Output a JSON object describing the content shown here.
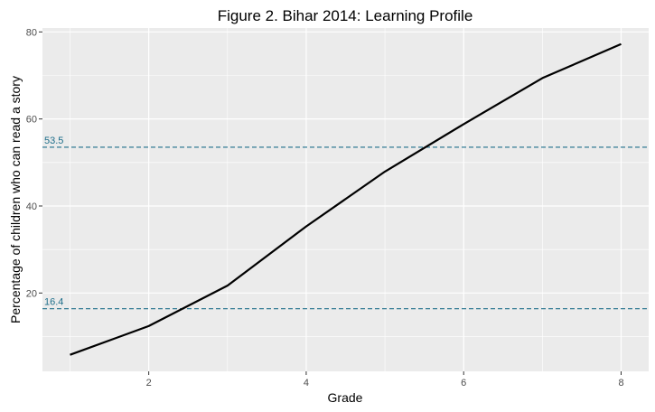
{
  "chart_data": {
    "type": "line",
    "title": "Figure 2. Bihar 2014: Learning Profile",
    "xlabel": "Grade",
    "ylabel": "Percentage of children who can read a story",
    "x": [
      1,
      2,
      3,
      4,
      5,
      6,
      7,
      8
    ],
    "series": [
      {
        "values": [
          5.8,
          12.4,
          21.7,
          35.3,
          47.9,
          58.8,
          69.4,
          77.2
        ]
      }
    ],
    "xlim": [
      0.65,
      8.35
    ],
    "ylim": [
      2.0,
      80.9
    ],
    "xticks": [
      2,
      4,
      6,
      8
    ],
    "yticks": [
      20,
      40,
      60,
      80
    ],
    "reference_lines": [
      {
        "value": 16.4,
        "label": "16.4"
      },
      {
        "value": 53.5,
        "label": "53.5"
      }
    ],
    "grid": true,
    "legend": "none",
    "colors": {
      "panel": "#ebebeb",
      "grid": "#ffffff",
      "line": "#000000",
      "reference": "#1f6f8b"
    }
  }
}
